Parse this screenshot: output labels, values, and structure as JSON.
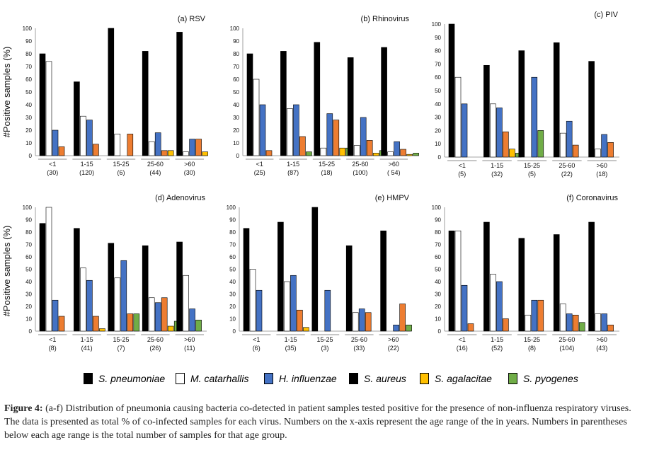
{
  "colors": {
    "S. pneumoniae": "#000000",
    "M. catarhallis": "#ffffff",
    "H. influenzae": "#4472c4",
    "S. aureus": "#000000",
    "S. agalacitae": "#ed7d31",
    "S. pyogenes": "#70ad47",
    "agalacitae_alt": "#ffc000"
  },
  "y_axis_label": "#Positive samples (%)",
  "legend": [
    {
      "name": "S. pneumoniae",
      "color": "#000000"
    },
    {
      "name": "M. catarhallis",
      "color": "#ffffff"
    },
    {
      "name": "H. influenzae",
      "color": "#4472c4"
    },
    {
      "name": "S. aureus",
      "color": "#000000"
    },
    {
      "name": "S. agalacitae",
      "color": "#ffc000"
    },
    {
      "name": "S. pyogenes",
      "color": "#70ad47"
    }
  ],
  "caption": {
    "label": "Figure 4:",
    "text": " (a-f) Distribution of pneumonia causing bacteria co-detected in patient samples tested positive for the presence of non-influenza respiratory viruses. The data is presented as total % of co-infected samples for each virus. Numbers on the x-axis represent the age range of the in years. Numbers in parentheses below each age range is the total number of samples for that age group."
  },
  "chart_data": [
    {
      "type": "bar",
      "title": "(a) RSV",
      "ylim": [
        0,
        100
      ],
      "yticks": [
        0,
        10,
        20,
        30,
        40,
        50,
        60,
        70,
        80,
        90,
        100
      ],
      "categories": [
        "<1",
        "1-15",
        "15-25",
        "25-60",
        ">60"
      ],
      "sample_labels": [
        "(30)",
        "(120)",
        "(6)",
        "(44)",
        "(30)"
      ],
      "series": [
        {
          "color": "#000000",
          "values": [
            80,
            58,
            100,
            82,
            97
          ]
        },
        {
          "color": "#ffffff",
          "values": [
            74,
            31,
            17,
            11,
            3
          ]
        },
        {
          "color": "#4472c4",
          "values": [
            20,
            28,
            0,
            18,
            13
          ]
        },
        {
          "color": "#ed7d31",
          "values": [
            7,
            9,
            17,
            4,
            13
          ]
        },
        {
          "color": "#ffc000",
          "values": [
            0,
            0,
            0,
            4,
            3
          ]
        },
        {
          "color": "#70ad47",
          "values": [
            0,
            0,
            0,
            0,
            0
          ]
        }
      ]
    },
    {
      "type": "bar",
      "title": "(b) Rhinovirus",
      "ylim": [
        0,
        100
      ],
      "yticks": [
        0,
        10,
        20,
        30,
        40,
        50,
        60,
        70,
        80,
        90,
        100
      ],
      "categories": [
        "<1",
        "1-15",
        "15-25",
        "25-60",
        ">60"
      ],
      "sample_labels": [
        "(25)",
        "(87)",
        "(18)",
        "(100)",
        "( 54)"
      ],
      "series": [
        {
          "color": "#000000",
          "values": [
            80,
            82,
            89,
            77,
            85
          ]
        },
        {
          "color": "#ffffff",
          "values": [
            60,
            37,
            6,
            8,
            3
          ]
        },
        {
          "color": "#4472c4",
          "values": [
            40,
            40,
            33,
            30,
            11
          ]
        },
        {
          "color": "#ed7d31",
          "values": [
            4,
            15,
            28,
            12,
            5
          ]
        },
        {
          "color": "#ffc000",
          "values": [
            0,
            0,
            6,
            2,
            1
          ]
        },
        {
          "color": "#70ad47",
          "values": [
            0,
            3,
            6,
            4,
            2
          ]
        }
      ]
    },
    {
      "type": "bar",
      "title": "(c) PIV",
      "ylim": [
        0,
        100
      ],
      "yticks": [
        0,
        10,
        20,
        30,
        40,
        50,
        60,
        70,
        80,
        90,
        100
      ],
      "categories": [
        "<1",
        "1-15",
        "15-25",
        "25-60",
        ">60"
      ],
      "sample_labels": [
        "(5)",
        "(32)",
        "(5)",
        "(22)",
        "(18)"
      ],
      "series": [
        {
          "color": "#000000",
          "values": [
            100,
            69,
            80,
            86,
            72
          ]
        },
        {
          "color": "#ffffff",
          "values": [
            60,
            40,
            0,
            18,
            6
          ]
        },
        {
          "color": "#4472c4",
          "values": [
            40,
            37,
            60,
            27,
            17
          ]
        },
        {
          "color": "#ed7d31",
          "values": [
            0,
            19,
            0,
            9,
            11
          ]
        },
        {
          "color": "#ffc000",
          "values": [
            0,
            6,
            0,
            0,
            0
          ]
        },
        {
          "color": "#70ad47",
          "values": [
            0,
            3,
            20,
            0,
            0
          ]
        }
      ]
    },
    {
      "type": "bar",
      "title": "(d) Adenovirus",
      "ylim": [
        0,
        100
      ],
      "yticks": [
        0,
        10,
        20,
        30,
        40,
        50,
        60,
        70,
        80,
        90,
        100
      ],
      "categories": [
        "<1",
        "1-15",
        "15-25",
        "25-60",
        ">60"
      ],
      "sample_labels": [
        "(8)",
        "(41)",
        "(7)",
        "(26)",
        "(11)"
      ],
      "series": [
        {
          "color": "#000000",
          "values": [
            87,
            83,
            71,
            69,
            72
          ]
        },
        {
          "color": "#ffffff",
          "values": [
            100,
            51,
            43,
            27,
            45
          ]
        },
        {
          "color": "#4472c4",
          "values": [
            25,
            41,
            57,
            23,
            18
          ]
        },
        {
          "color": "#ed7d31",
          "values": [
            12,
            12,
            14,
            27,
            0
          ]
        },
        {
          "color": "#ffc000",
          "values": [
            0,
            2,
            0,
            4,
            0
          ]
        },
        {
          "color": "#70ad47",
          "values": [
            0,
            0,
            14,
            8,
            9
          ]
        }
      ]
    },
    {
      "type": "bar",
      "title": "(e) HMPV",
      "ylim": [
        0,
        100
      ],
      "yticks": [
        0,
        10,
        20,
        30,
        40,
        50,
        60,
        70,
        80,
        90,
        100
      ],
      "categories": [
        "<1",
        "1-15",
        "15-25",
        "25-60",
        ">60"
      ],
      "sample_labels": [
        "(6)",
        "(35)",
        "(3)",
        "(33)",
        "(22)"
      ],
      "series": [
        {
          "color": "#000000",
          "values": [
            83,
            88,
            100,
            69,
            81
          ]
        },
        {
          "color": "#ffffff",
          "values": [
            50,
            40,
            0,
            15,
            0
          ]
        },
        {
          "color": "#4472c4",
          "values": [
            33,
            45,
            33,
            18,
            5
          ]
        },
        {
          "color": "#ed7d31",
          "values": [
            0,
            17,
            0,
            15,
            22
          ]
        },
        {
          "color": "#ffc000",
          "values": [
            0,
            3,
            0,
            0,
            0
          ]
        },
        {
          "color": "#70ad47",
          "values": [
            0,
            0,
            0,
            0,
            5
          ]
        }
      ]
    },
    {
      "type": "bar",
      "title": "(f) Coronavirus",
      "ylim": [
        0,
        100
      ],
      "yticks": [
        0,
        10,
        20,
        30,
        40,
        50,
        60,
        70,
        80,
        90,
        100
      ],
      "categories": [
        "<1",
        "1-15",
        "15-25",
        "25-60",
        ">60"
      ],
      "sample_labels": [
        "(16)",
        "(52)",
        "(8)",
        "(104)",
        "(43)"
      ],
      "series": [
        {
          "color": "#000000",
          "values": [
            81,
            88,
            75,
            78,
            88
          ]
        },
        {
          "color": "#ffffff",
          "values": [
            81,
            46,
            13,
            22,
            14
          ]
        },
        {
          "color": "#4472c4",
          "values": [
            37,
            40,
            25,
            14,
            14
          ]
        },
        {
          "color": "#ed7d31",
          "values": [
            6,
            10,
            25,
            13,
            5
          ]
        },
        {
          "color": "#ffc000",
          "values": [
            0,
            0,
            0,
            0,
            0
          ]
        },
        {
          "color": "#70ad47",
          "values": [
            0,
            0,
            0,
            7,
            0
          ]
        }
      ]
    }
  ]
}
